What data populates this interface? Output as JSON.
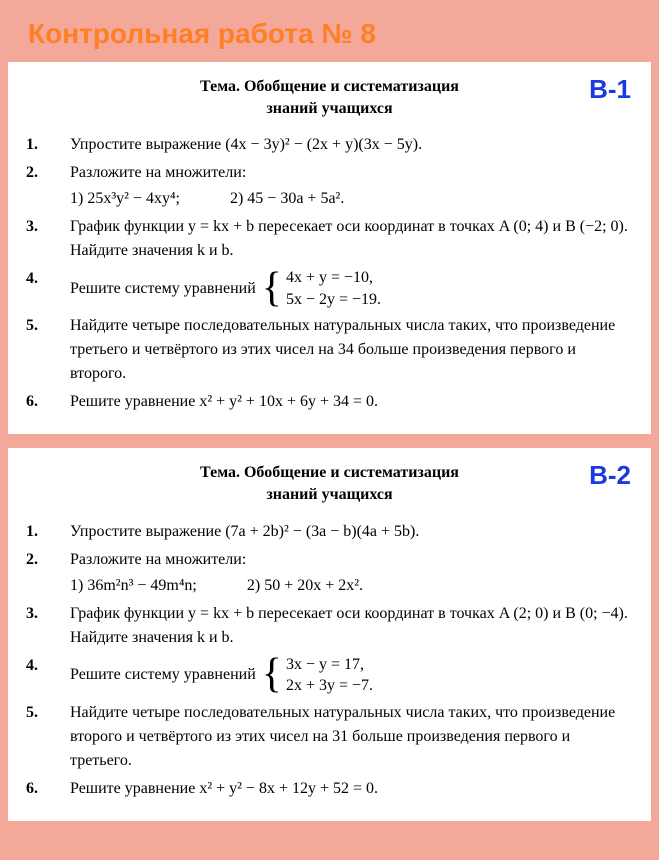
{
  "colors": {
    "page_bg": "#f4a89a",
    "card_bg": "#ffffff",
    "title": "#ff7f27",
    "variant": "#1a3ae0",
    "text": "#000000"
  },
  "typography": {
    "title_fontsize": 28,
    "variant_fontsize": 26,
    "body_fontsize": 16,
    "topic_fontsize": 16
  },
  "title": "Контрольная работа № 8",
  "variants": [
    {
      "label": "В-1",
      "topic_line1": "Тема. Обобщение и систематизация",
      "topic_line2": "знаний учащихся",
      "tasks": [
        {
          "n": "1.",
          "text": "Упростите выражение (4x − 3y)² − (2x + y)(3x − 5y)."
        },
        {
          "n": "2.",
          "intro": "Разложите на множители:",
          "sub1": "1) 25x³y² − 4xy⁴;",
          "sub2": "2) 45 − 30a + 5a²."
        },
        {
          "n": "3.",
          "text": "График функции y = kx + b пересекает оси координат в точках A (0; 4) и B (−2; 0). Найдите значения k и b."
        },
        {
          "n": "4.",
          "lead": "Решите систему уравнений",
          "eq1": "4x + y = −10,",
          "eq2": "5x − 2y = −19."
        },
        {
          "n": "5.",
          "text": "Найдите четыре последовательных натуральных числа таких, что произведение третьего и четвёртого из этих чисел на 34 больше произведения первого и второго."
        },
        {
          "n": "6.",
          "text": "Решите уравнение x² + y² + 10x + 6y + 34 = 0."
        }
      ]
    },
    {
      "label": "В-2",
      "topic_line1": "Тема. Обобщение и систематизация",
      "topic_line2": "знаний учащихся",
      "tasks": [
        {
          "n": "1.",
          "text": "Упростите выражение (7a + 2b)² − (3a − b)(4a + 5b)."
        },
        {
          "n": "2.",
          "intro": "Разложите на множители:",
          "sub1": "1) 36m²n³ − 49m⁴n;",
          "sub2": "2) 50 + 20x + 2x²."
        },
        {
          "n": "3.",
          "text": "График функции y = kx + b пересекает оси координат в точках A (2; 0) и B (0; −4). Найдите значения k и b."
        },
        {
          "n": "4.",
          "lead": "Решите систему уравнений",
          "eq1": "3x − y = 17,",
          "eq2": "2x + 3y = −7."
        },
        {
          "n": "5.",
          "text": "Найдите четыре последовательных натуральных числа таких, что произведение второго и четвёртого из этих чисел на 31 больше произведения первого и третьего."
        },
        {
          "n": "6.",
          "text": "Решите уравнение x² + y² − 8x + 12y + 52 = 0."
        }
      ]
    }
  ]
}
